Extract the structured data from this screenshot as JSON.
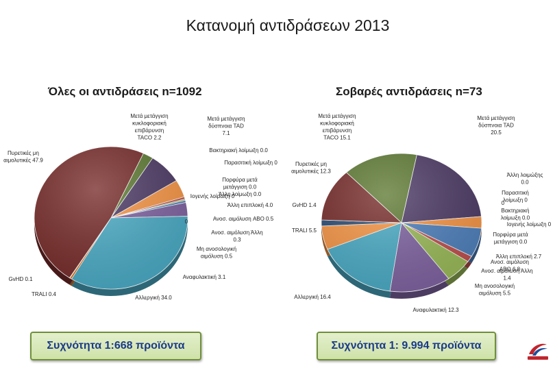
{
  "title": "Κατανομή αντιδράσεων 2013",
  "chart_data": [
    {
      "type": "pie",
      "title": "Όλες οι αντιδράσεις n=1092",
      "slices": [
        {
          "label": "Μετά μετάγγιση κυκλοφοριακή επιβάρυνση  TACO",
          "value_text": "2.2",
          "value": 2.2,
          "color": "#5e7a33"
        },
        {
          "label": "Μετά μετάγγιση δύσπνοια TAD",
          "value_text": "7.1",
          "value": 7.1,
          "color": "#4d3b66"
        },
        {
          "label": "Βακτηριακή λοίμωξη",
          "value_text": "0.0",
          "value": 0.0,
          "color": "#4f81bd"
        },
        {
          "label": "Παρασιτική λοίμωξη",
          "value_text": "0",
          "value": 0.0,
          "color": "#c0504d"
        },
        {
          "label": "Πορφύρα μετά μετάγγιση",
          "value_text": "0.0",
          "value": 0.0,
          "color": "#7f9f4f"
        },
        {
          "label": "Άλλη λοίμωξη",
          "value_text": "0.0",
          "value": 0.0,
          "color": "#8064a2"
        },
        {
          "label": "Ιογενής λοίμωξη",
          "value_text": "0",
          "value": 0.0,
          "color": "#4bacc6"
        },
        {
          "label": "Άλλη επιπλοκή",
          "value_text": "4.0",
          "value": 4.0,
          "color": "#f79646"
        },
        {
          "label": "",
          "value_text": "0",
          "value": 0.0,
          "color": "#2c4d75"
        },
        {
          "label": "Ανοσ. αιμόλυση ABO",
          "value_text": "0.5",
          "value": 0.5,
          "color": "#c0504d"
        },
        {
          "label": "Ανοσ. αιμόλυση Άλλη",
          "value_text": "0.3",
          "value": 0.3,
          "color": "#9bbb59"
        },
        {
          "label": "Μη ανοσολογική αιμόλυση",
          "value_text": "0.5",
          "value": 0.5,
          "color": "#4f81bd"
        },
        {
          "label": "Αναφυλακτική",
          "value_text": "3.1",
          "value": 3.1,
          "color": "#8064a2"
        },
        {
          "label": "Αλλεργική",
          "value_text": "34.0",
          "value": 34.0,
          "color": "#4bacc6"
        },
        {
          "label": "TRALI",
          "value_text": "0.4",
          "value": 0.4,
          "color": "#e46c0a"
        },
        {
          "label": "GvHD",
          "value_text": "0.1",
          "value": 0.1,
          "color": "#1f497d"
        },
        {
          "label": "Πυρετικές μη αιμολυτικές",
          "value_text": "47.9",
          "value": 47.9,
          "color": "#772c2a"
        }
      ]
    },
    {
      "type": "pie",
      "title": "Σοβαρές  αντιδράσεις n=73",
      "slices": [
        {
          "label": "Μετά μετάγγιση δύσπνοια TAD",
          "value_text": "20.5",
          "value": 20.5,
          "color": "#4d3b66"
        },
        {
          "label": "Άλλη λοιμώξης",
          "value_text": "0.0",
          "value": 0.0,
          "color": "#8064a2"
        },
        {
          "label": "Παρασιτική λοίμωξη",
          "value_text": "0",
          "value": 0.0,
          "color": "#c0504d"
        },
        {
          "label": "",
          "value_text": "0",
          "value": 0.0,
          "color": "#4f81bd"
        },
        {
          "label": "Βακτηριακή λοίμωξη",
          "value_text": "0.0",
          "value": 0.0,
          "color": "#4f81bd"
        },
        {
          "label": "Ιογενής λοίμωξη",
          "value_text": "0",
          "value": 0.0,
          "color": "#4bacc6"
        },
        {
          "label": "Πορφύρα μετά μετάγγιση",
          "value_text": "0.0",
          "value": 0.0,
          "color": "#9bbb59"
        },
        {
          "label": "Άλλη επιπλοκή",
          "value_text": "2.7",
          "value": 2.7,
          "color": "#f79646"
        },
        {
          "label": "Ανοσ. αιμόλυση ABO",
          "value_text": "6.8",
          "value": 6.8,
          "color": "#4f81bd"
        },
        {
          "label": "Ανοσ. αιμόλυση Άλλη",
          "value_text": "1.4",
          "value": 1.4,
          "color": "#c0504d"
        },
        {
          "label": "Μη ανοσολογική αιμόλυση",
          "value_text": "5.5",
          "value": 5.5,
          "color": "#9bbb59"
        },
        {
          "label": "Αναφυλακτική",
          "value_text": "12.3",
          "value": 12.3,
          "color": "#8064a2"
        },
        {
          "label": "Αλλεργική",
          "value_text": "16.4",
          "value": 16.4,
          "color": "#4bacc6"
        },
        {
          "label": "TRALI",
          "value_text": "5.5",
          "value": 5.5,
          "color": "#f79646"
        },
        {
          "label": "GvHD",
          "value_text": "1.4",
          "value": 1.4,
          "color": "#2c4d75"
        },
        {
          "label": "Πυρετικές μη αιμολυτικές",
          "value_text": "12.3",
          "value": 12.3,
          "color": "#772c2a"
        },
        {
          "label": "Μετά μετάγγιση κυκλοφοριακή επιβάρυνση  TACO",
          "value_text": "15.1",
          "value": 15.1,
          "color": "#5e7a33"
        }
      ]
    }
  ],
  "frequency": {
    "left": "Συχνότητα 1:668 προϊόντα",
    "right": "Συχνότητα 1: 9.994 προϊόντα"
  },
  "logo_icon": "keelpno-logo-icon"
}
